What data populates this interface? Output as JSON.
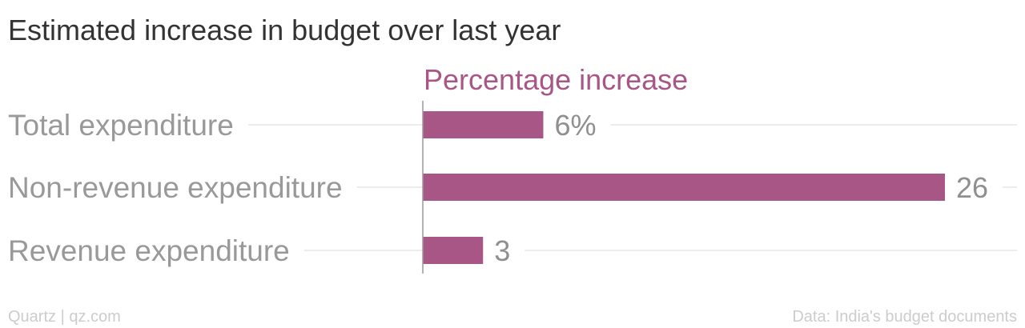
{
  "title": "Estimated increase in budget over last year",
  "footer": {
    "source_left": "Quartz | qz.com",
    "source_right": "Data: India's budget documents"
  },
  "colors": {
    "bar": "#a85686",
    "series_header": "#a85686",
    "title": "#333333",
    "category_label": "#999999",
    "value_label": "#8f8f8f",
    "gridline": "#e6e6e6",
    "axis": "#999999",
    "footer": "#cccccc"
  },
  "chart_data": {
    "type": "bar",
    "orientation": "horizontal",
    "title": "Estimated increase in budget over last year",
    "series_header": "Percentage increase",
    "categories": [
      "Total expenditure",
      "Non-revenue expenditure",
      "Revenue expenditure"
    ],
    "values": [
      6,
      26,
      3
    ],
    "value_labels": [
      "6%",
      "26",
      "3"
    ],
    "xlim": [
      0,
      26
    ],
    "grid": true,
    "legend": "none"
  }
}
